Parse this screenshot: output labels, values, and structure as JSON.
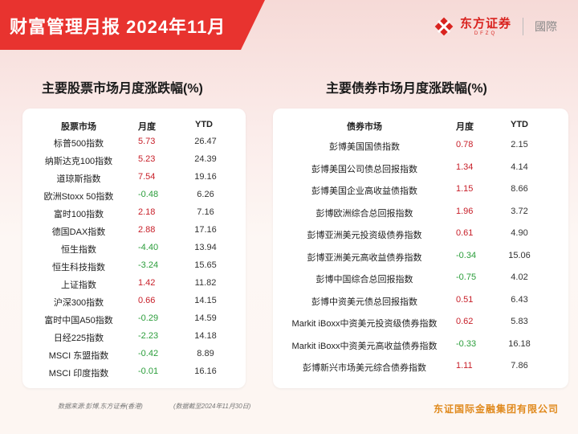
{
  "header": {
    "title": "财富管理月报  2024年11月",
    "logo_name": "东方证券",
    "logo_sub": "DFZQ",
    "logo_intl": "國際"
  },
  "equity": {
    "section_title": "主要股票市场月度涨跌幅(%)",
    "col_market": "股票市场",
    "col_month": "月度",
    "col_ytd": "YTD",
    "rows": [
      {
        "name": "标普500指数",
        "month": "5.73",
        "ytd": "26.47"
      },
      {
        "name": "纳斯达克100指数",
        "month": "5.23",
        "ytd": "24.39"
      },
      {
        "name": "道琼斯指数",
        "month": "7.54",
        "ytd": "19.16"
      },
      {
        "name": "欧洲Stoxx 50指数",
        "month": "-0.48",
        "ytd": "6.26"
      },
      {
        "name": "富时100指数",
        "month": "2.18",
        "ytd": "7.16"
      },
      {
        "name": "德国DAX指数",
        "month": "2.88",
        "ytd": "17.16"
      },
      {
        "name": "恒生指数",
        "month": "-4.40",
        "ytd": "13.94"
      },
      {
        "name": "恒生科技指数",
        "month": "-3.24",
        "ytd": "15.65"
      },
      {
        "name": "上证指数",
        "month": "1.42",
        "ytd": "11.82"
      },
      {
        "name": "沪深300指数",
        "month": "0.66",
        "ytd": "14.15"
      },
      {
        "name": "富时中国A50指数",
        "month": "-0.29",
        "ytd": "14.59"
      },
      {
        "name": "日经225指数",
        "month": "-2.23",
        "ytd": "14.18"
      },
      {
        "name": "MSCI 东盟指数",
        "month": "-0.42",
        "ytd": "8.89"
      },
      {
        "name": "MSCI 印度指数",
        "month": "-0.01",
        "ytd": "16.16"
      }
    ]
  },
  "bond": {
    "section_title": "主要债券市场月度涨跌幅(%)",
    "col_market": "债券市场",
    "col_month": "月度",
    "col_ytd": "YTD",
    "rows": [
      {
        "name": "彭博美国国债指数",
        "month": "0.78",
        "ytd": "2.15"
      },
      {
        "name": "彭博美国公司债总回报指数",
        "month": "1.34",
        "ytd": "4.14"
      },
      {
        "name": "彭博美国企业高收益债指数",
        "month": "1.15",
        "ytd": "8.66"
      },
      {
        "name": "彭博欧洲综合总回报指数",
        "month": "1.96",
        "ytd": "3.72"
      },
      {
        "name": "彭博亚洲美元投资级债券指数",
        "month": "0.61",
        "ytd": "4.90"
      },
      {
        "name": "彭博亚洲美元高收益债券指数",
        "month": "-0.34",
        "ytd": "15.06"
      },
      {
        "name": "彭博中国综合总回报指数",
        "month": "-0.75",
        "ytd": "4.02"
      },
      {
        "name": "彭博中资美元债总回报指数",
        "month": "0.51",
        "ytd": "6.43"
      },
      {
        "name": "Markit iBoxx中资美元投资级债券指数",
        "month": "0.62",
        "ytd": "5.83"
      },
      {
        "name": "Markit iBoxx中资美元高收益债券指数",
        "month": "-0.33",
        "ytd": "16.18"
      },
      {
        "name": "彭博新兴市场美元综合债券指数",
        "month": "1.11",
        "ytd": "7.86"
      }
    ]
  },
  "footer": {
    "source": "数据来源:彭博,东方证券(香港)",
    "date_note": "(数据截至2024年11月30日)",
    "company": "东证国际金融集团有限公司"
  },
  "colors": {
    "brand_red": "#e8332f",
    "positive": "#c8202a",
    "negative": "#2a9d3a",
    "company_orange": "#e08a1e"
  }
}
